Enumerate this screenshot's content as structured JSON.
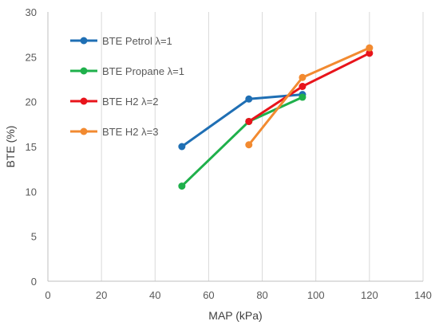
{
  "chart_data": {
    "type": "line",
    "title": "",
    "xlabel": "MAP (kPa)",
    "ylabel": "BTE (%)",
    "xlim": [
      0,
      140
    ],
    "ylim": [
      0,
      30
    ],
    "x_ticks": [
      0,
      20,
      40,
      60,
      80,
      100,
      120,
      140
    ],
    "y_ticks": [
      0,
      5,
      10,
      15,
      20,
      25,
      30
    ],
    "grid": "vertical-major",
    "legend_position": "top-left-inside",
    "series": [
      {
        "name": "BTE Petrol λ=1",
        "color": "#1f6fb4",
        "x": [
          50,
          75,
          95
        ],
        "y": [
          15.0,
          20.3,
          20.8
        ]
      },
      {
        "name": "BTE Propane λ=1",
        "color": "#1fb04b",
        "x": [
          50,
          75,
          95
        ],
        "y": [
          10.6,
          17.8,
          20.5
        ]
      },
      {
        "name": "BTE H2 λ=2",
        "color": "#e8141b",
        "x": [
          75,
          95,
          120
        ],
        "y": [
          17.8,
          21.7,
          25.4
        ]
      },
      {
        "name": "BTE H2 λ=3",
        "color": "#f28a30",
        "x": [
          75,
          95,
          120
        ],
        "y": [
          15.2,
          22.7,
          26.0
        ]
      }
    ]
  }
}
